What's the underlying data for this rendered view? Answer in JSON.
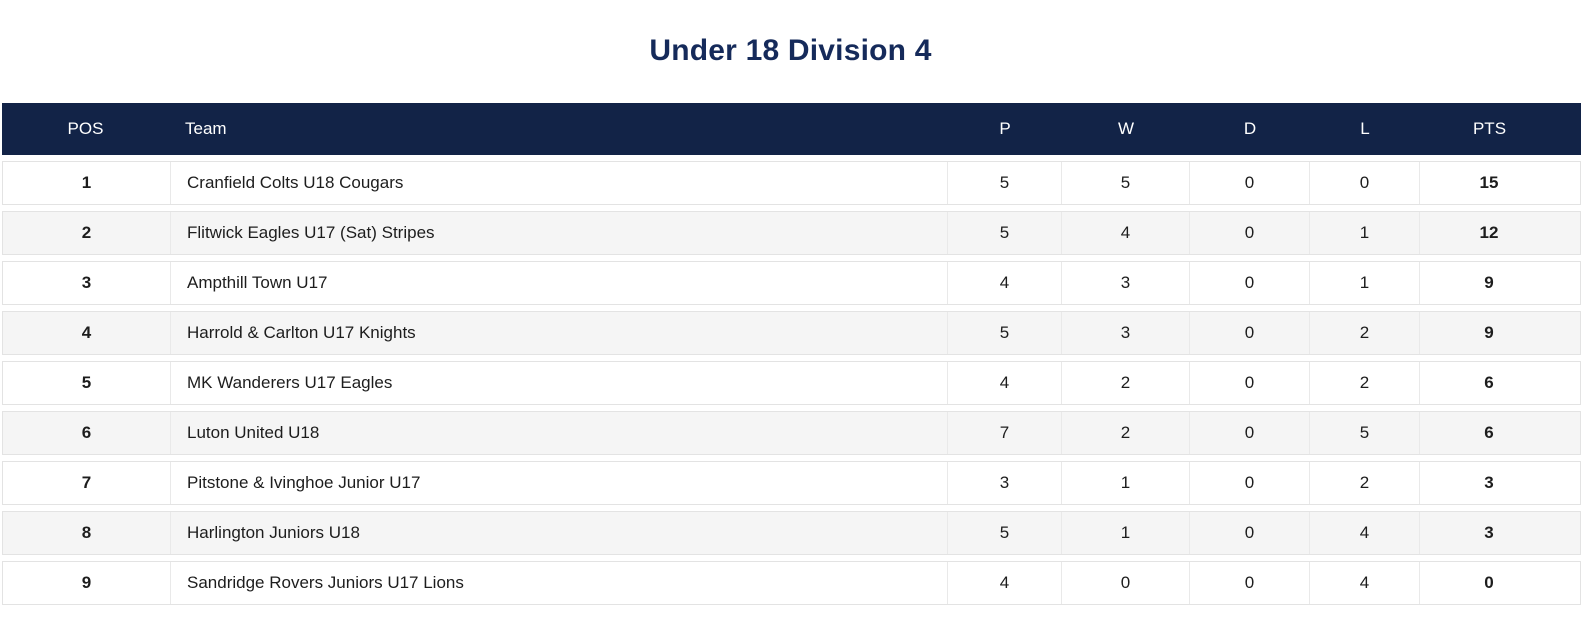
{
  "title": "Under 18 Division 4",
  "colors": {
    "header_bg": "#122347",
    "title_text": "#152a5a",
    "row_bg": "#ffffff",
    "row_alt_bg": "#f5f5f5",
    "border": "#e3e3e3",
    "row_text": "#1d1d1d",
    "header_text": "#ffffff"
  },
  "table": {
    "columns": [
      {
        "key": "pos",
        "label": "POS"
      },
      {
        "key": "team",
        "label": "Team"
      },
      {
        "key": "p",
        "label": "P"
      },
      {
        "key": "w",
        "label": "W"
      },
      {
        "key": "d",
        "label": "D"
      },
      {
        "key": "l",
        "label": "L"
      },
      {
        "key": "pts",
        "label": "PTS"
      }
    ],
    "rows": [
      {
        "pos": "1",
        "team": "Cranfield Colts U18 Cougars",
        "p": "5",
        "w": "5",
        "d": "0",
        "l": "0",
        "pts": "15"
      },
      {
        "pos": "2",
        "team": "Flitwick Eagles U17 (Sat) Stripes",
        "p": "5",
        "w": "4",
        "d": "0",
        "l": "1",
        "pts": "12"
      },
      {
        "pos": "3",
        "team": "Ampthill Town U17",
        "p": "4",
        "w": "3",
        "d": "0",
        "l": "1",
        "pts": "9"
      },
      {
        "pos": "4",
        "team": "Harrold & Carlton U17 Knights",
        "p": "5",
        "w": "3",
        "d": "0",
        "l": "2",
        "pts": "9"
      },
      {
        "pos": "5",
        "team": "MK Wanderers U17 Eagles",
        "p": "4",
        "w": "2",
        "d": "0",
        "l": "2",
        "pts": "6"
      },
      {
        "pos": "6",
        "team": "Luton United U18",
        "p": "7",
        "w": "2",
        "d": "0",
        "l": "5",
        "pts": "6"
      },
      {
        "pos": "7",
        "team": "Pitstone & Ivinghoe Junior U17",
        "p": "3",
        "w": "1",
        "d": "0",
        "l": "2",
        "pts": "3"
      },
      {
        "pos": "8",
        "team": "Harlington Juniors U18",
        "p": "5",
        "w": "1",
        "d": "0",
        "l": "4",
        "pts": "3"
      },
      {
        "pos": "9",
        "team": "Sandridge Rovers Juniors U17 Lions",
        "p": "4",
        "w": "0",
        "d": "0",
        "l": "4",
        "pts": "0"
      }
    ]
  }
}
